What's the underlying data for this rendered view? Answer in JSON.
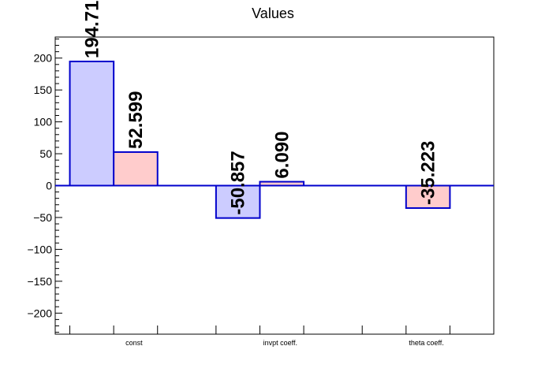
{
  "chart_data": {
    "type": "bar",
    "title": "Values",
    "xlabel": "",
    "ylabel": "",
    "categories": [
      "const",
      "invpt coeff.",
      "theta coeff."
    ],
    "series": [
      {
        "values": [
          194.71,
          -50.857,
          null
        ],
        "labels": [
          "194.71",
          "-50.857",
          ""
        ],
        "color": "#ccccff",
        "stroke": "#0000cc"
      },
      {
        "values": [
          52.599,
          6.09,
          -35.223
        ],
        "labels": [
          "52.599",
          "6.090",
          "-35.223"
        ],
        "color": "#ffcccc",
        "stroke": "#0000cc"
      }
    ],
    "yticks": [
      -200,
      -150,
      -100,
      -50,
      0,
      50,
      100,
      150,
      200
    ],
    "ytick_labels": [
      "−200",
      "−150",
      "−100",
      "−50",
      "0",
      "50",
      "100",
      "150",
      "200"
    ],
    "ylim": [
      -233,
      233
    ],
    "grid": false,
    "legend": "none"
  }
}
